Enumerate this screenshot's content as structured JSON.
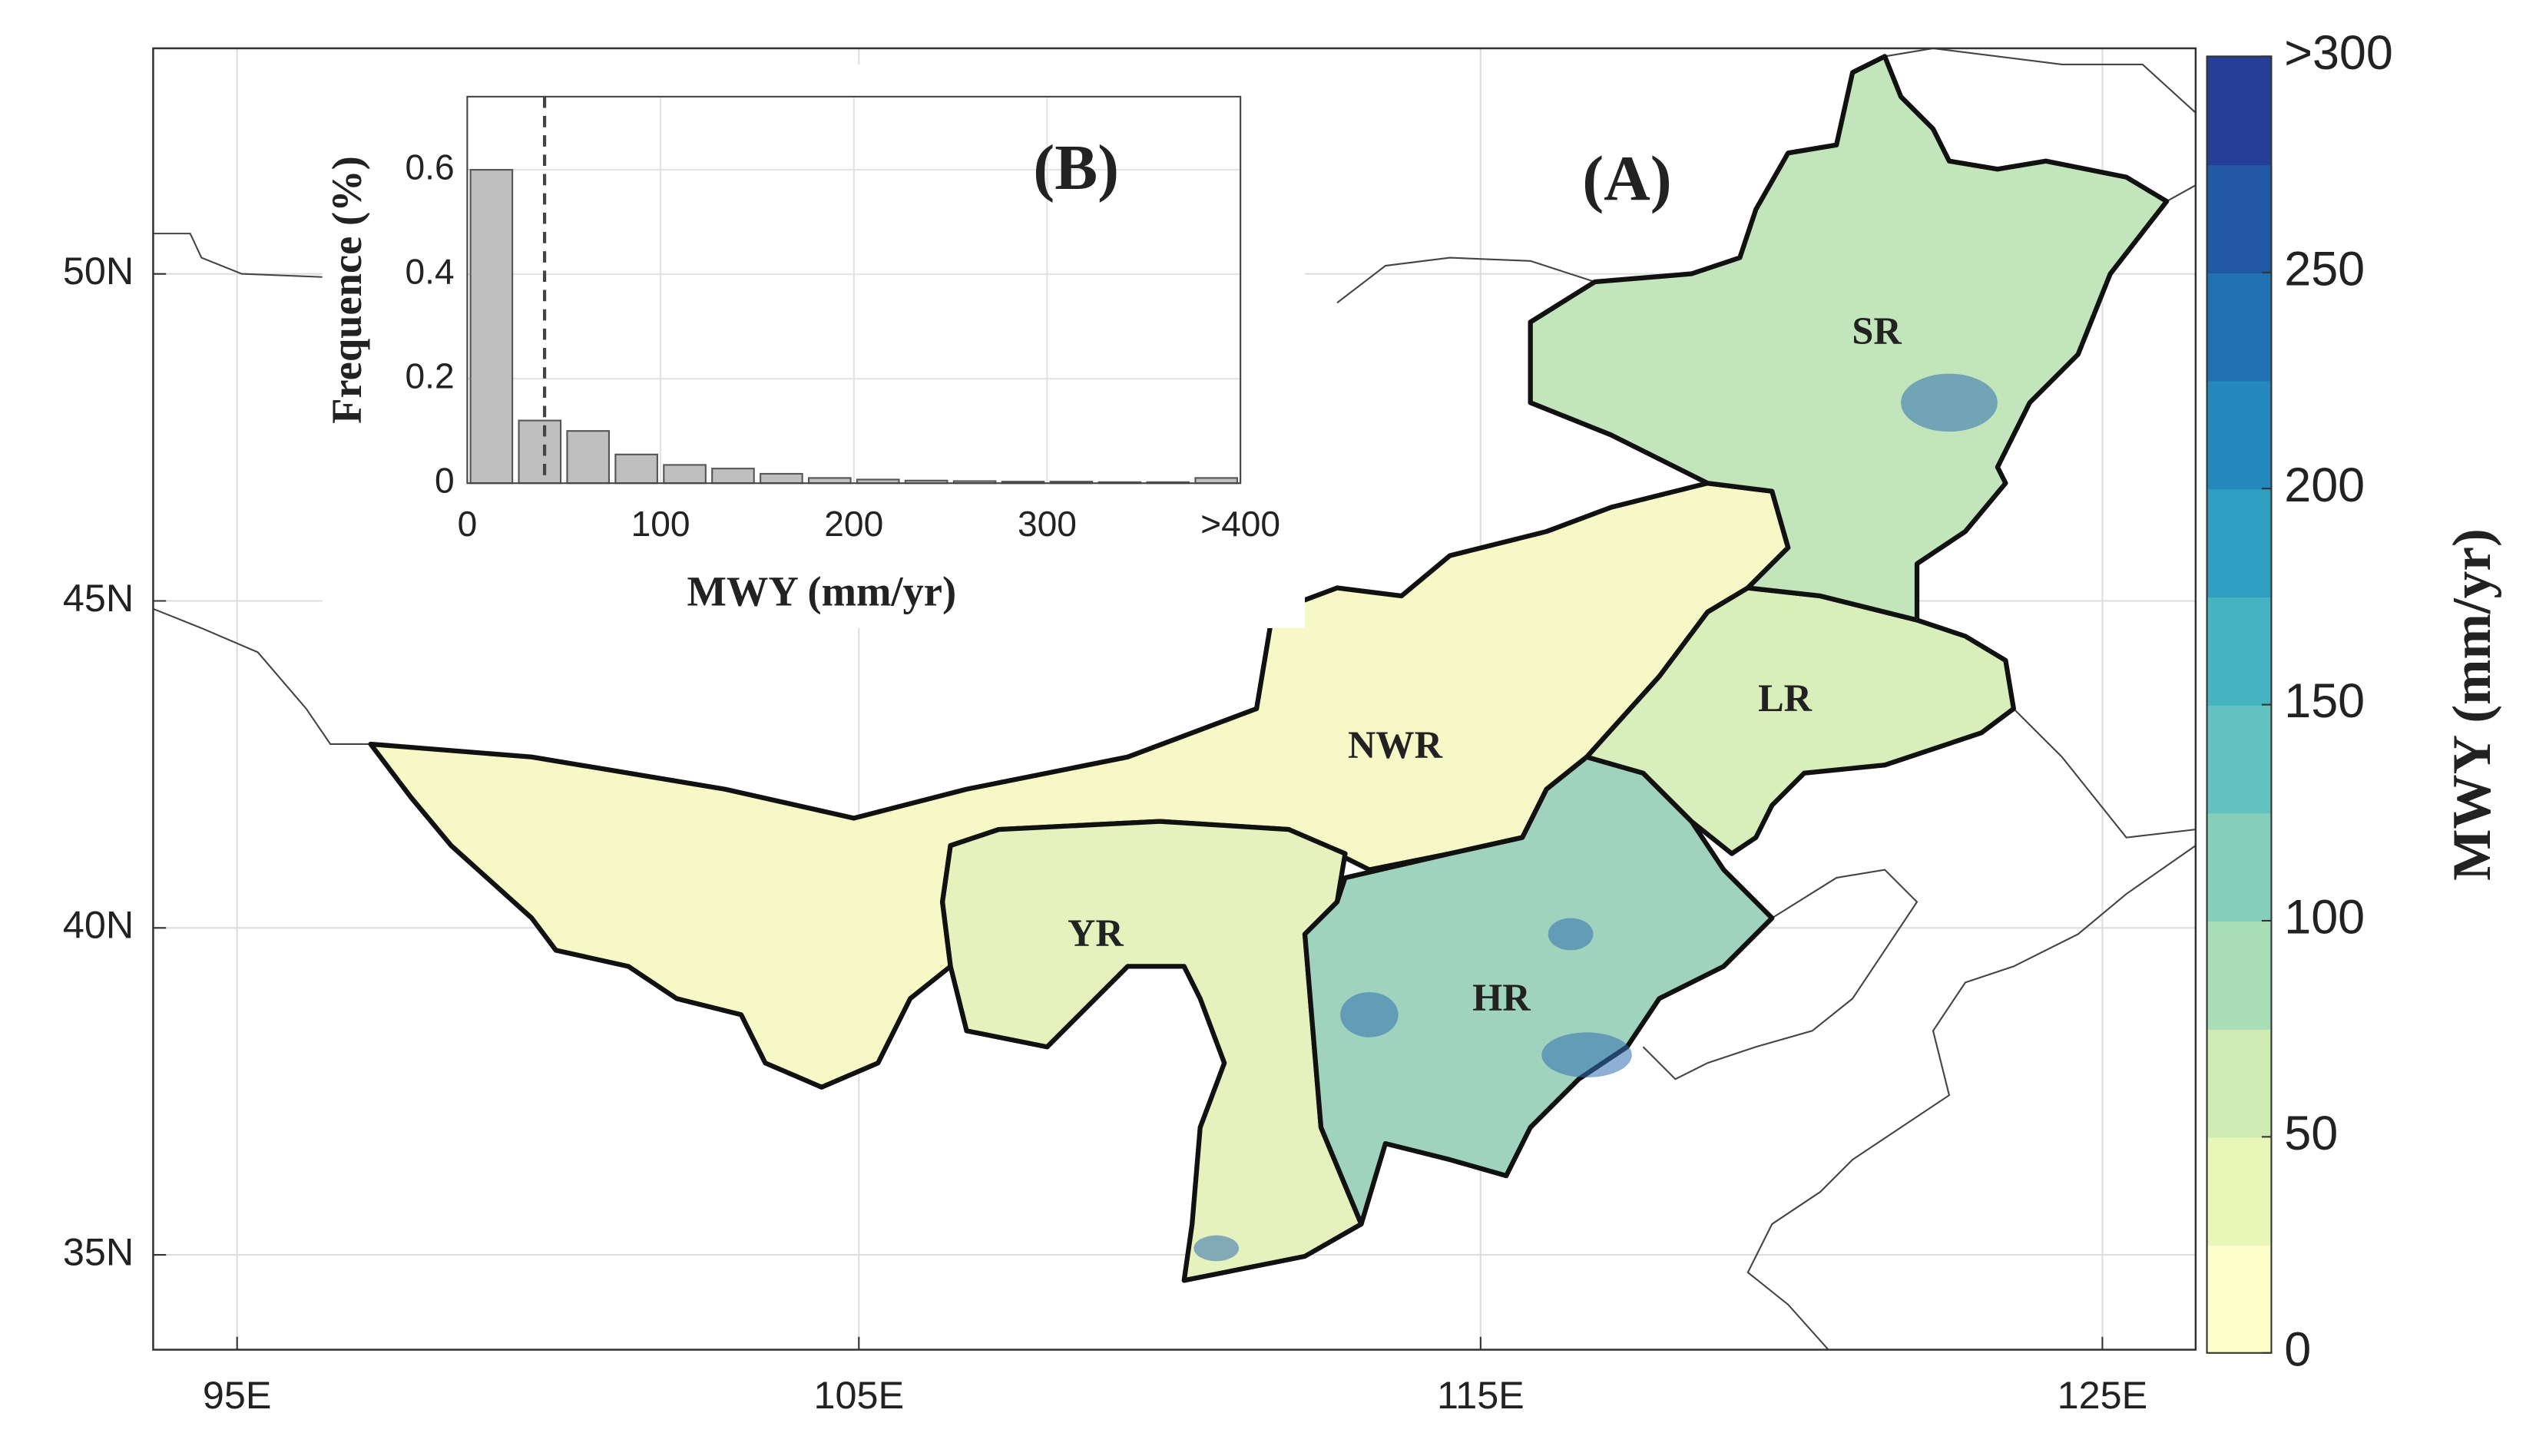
{
  "map": {
    "panel_label": "(A)",
    "xlim": [
      93.65,
      126.5
    ],
    "ylim": [
      33.55,
      53.45
    ],
    "lon_ticks": [
      {
        "value": 95,
        "label": "95E"
      },
      {
        "value": 105,
        "label": "105E"
      },
      {
        "value": 115,
        "label": "115E"
      },
      {
        "value": 125,
        "label": "125E"
      }
    ],
    "lat_ticks": [
      {
        "value": 35,
        "label": "35N"
      },
      {
        "value": 40,
        "label": "40N"
      },
      {
        "value": 45,
        "label": "45N"
      },
      {
        "value": 50,
        "label": "50N"
      }
    ],
    "regions": [
      {
        "label": "SR"
      },
      {
        "label": "NWR"
      },
      {
        "label": "LR"
      },
      {
        "label": "YR"
      },
      {
        "label": "HR"
      }
    ],
    "colorbar": {
      "title": "MWY (mm/yr)",
      "lim": [
        0,
        300
      ],
      "ticks": [
        0,
        50,
        100,
        150,
        200,
        250,
        {
          "value": 300,
          "label": ">300"
        }
      ],
      "colors": [
        "#ffffcc",
        "#e8f6b8",
        "#cdebb3",
        "#a9ddb6",
        "#85cfba",
        "#62c2bf",
        "#45b3c1",
        "#2f9fc1",
        "#2389bd",
        "#2172b2",
        "#2259a6",
        "#253f98"
      ]
    }
  },
  "chart_data": {
    "type": "histogram",
    "title": "(B)",
    "x_label": "MWY (mm/yr)",
    "y_label": "Frequence (%)",
    "bins": [
      0,
      25,
      50,
      75,
      100,
      125,
      150,
      175,
      200,
      225,
      250,
      275,
      300,
      325,
      350,
      375,
      400
    ],
    "values": [
      0.6,
      0.12,
      0.1,
      0.055,
      0.035,
      0.028,
      0.018,
      0.01,
      0.007,
      0.005,
      0.004,
      0.003,
      0.003,
      0.002,
      0.002,
      0.01
    ],
    "color": "#bfbfbf",
    "vline": 40,
    "xlim": [
      0,
      400
    ],
    "ylim": [
      0,
      0.74
    ],
    "xticks": [
      0,
      100,
      200,
      300,
      {
        "value": 400,
        "label": ">400"
      }
    ],
    "yticks": [
      0,
      0.2,
      0.4,
      0.6
    ],
    "grid": true
  }
}
